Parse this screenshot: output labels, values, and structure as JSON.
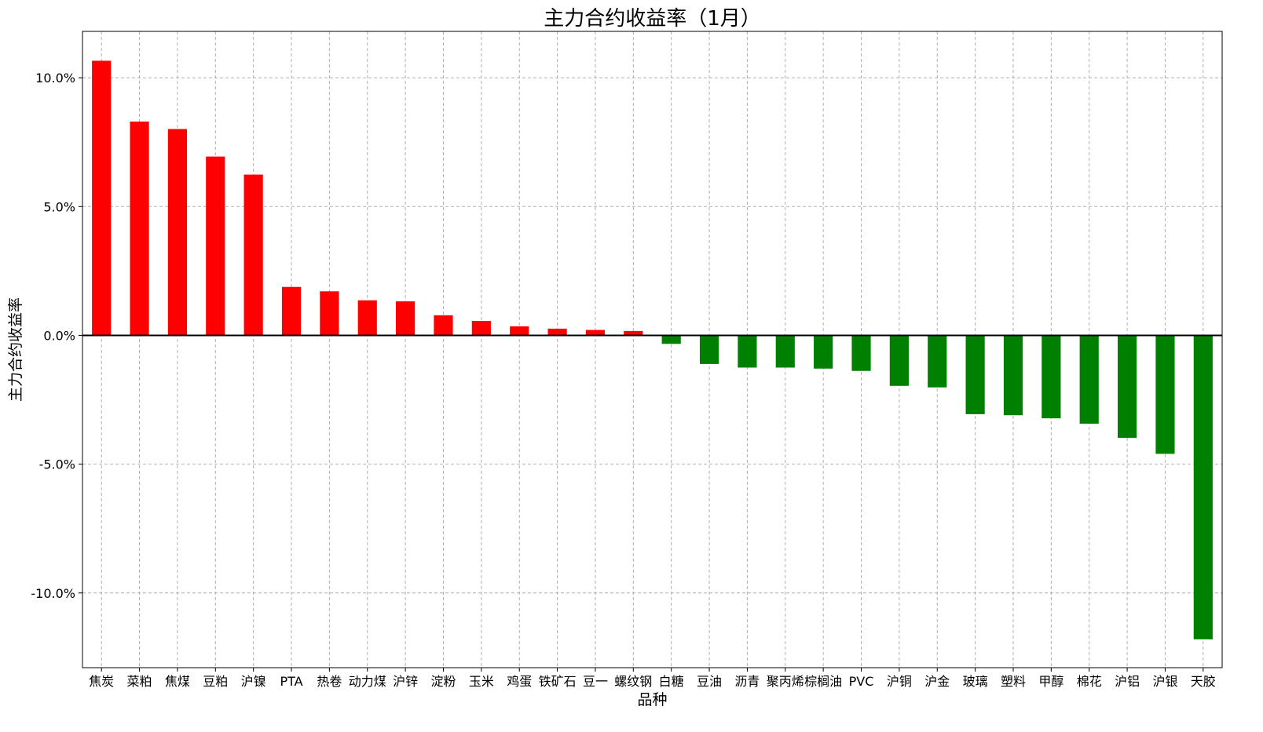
{
  "chart_data": {
    "type": "bar",
    "title": "主力合约收益率（1月）",
    "xlabel": "品种",
    "ylabel": "主力合约收益率",
    "ylim": [
      -12.9,
      11.8
    ],
    "yticks": [
      10.0,
      5.0,
      0.0,
      -5.0,
      -10.0
    ],
    "ytick_labels": [
      "10.0%",
      "5.0%",
      "0.0%",
      "-5.0%",
      "-10.0%"
    ],
    "grid": true,
    "categories": [
      "焦炭",
      "菜粕",
      "焦煤",
      "豆粕",
      "沪镍",
      "PTA",
      "热卷",
      "动力煤",
      "沪锌",
      "淀粉",
      "玉米",
      "鸡蛋",
      "铁矿石",
      "豆一",
      "螺纹钢",
      "白糖",
      "豆油",
      "沥青",
      "聚丙烯",
      "棕榈油",
      "PVC",
      "沪铜",
      "沪金",
      "玻璃",
      "塑料",
      "甲醇",
      "棉花",
      "沪铝",
      "沪银",
      "天胶"
    ],
    "values": [
      10.66,
      8.3,
      8.01,
      6.94,
      6.24,
      1.88,
      1.71,
      1.36,
      1.32,
      0.78,
      0.56,
      0.35,
      0.26,
      0.21,
      0.17,
      -0.33,
      -1.11,
      -1.25,
      -1.25,
      -1.29,
      -1.38,
      -1.96,
      -2.02,
      -3.06,
      -3.1,
      -3.22,
      -3.43,
      -3.98,
      -4.6,
      -11.8
    ],
    "colors": {
      "positive": "#ff0000",
      "negative": "#008000",
      "zero_line": "#000000",
      "grid": "#b0b0b0"
    }
  }
}
